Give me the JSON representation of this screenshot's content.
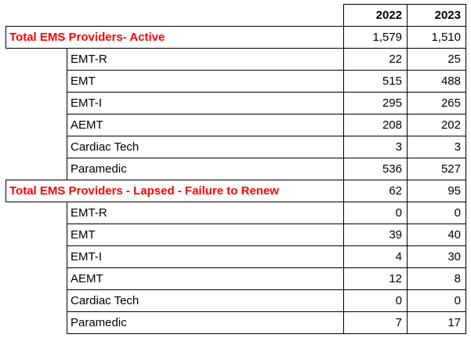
{
  "table": {
    "columns": {
      "year1": "2022",
      "year2": "2023"
    },
    "colors": {
      "accent_red": "#FF0000",
      "border": "#000000",
      "text": "#000000",
      "background": "#FFFFFF"
    },
    "sections": [
      {
        "title": "Total EMS Providers- Active",
        "total_2022": "1,579",
        "total_2023": "1,510",
        "rows": [
          {
            "label": "EMT-R",
            "v2022": "22",
            "v2023": "25"
          },
          {
            "label": "EMT",
            "v2022": "515",
            "v2023": "488"
          },
          {
            "label": "EMT-I",
            "v2022": "295",
            "v2023": "265"
          },
          {
            "label": "AEMT",
            "v2022": "208",
            "v2023": "202"
          },
          {
            "label": "Cardiac Tech",
            "v2022": "3",
            "v2023": "3"
          },
          {
            "label": "Paramedic",
            "v2022": "536",
            "v2023": "527"
          }
        ]
      },
      {
        "title": "Total EMS Providers - Lapsed - Failure to Renew",
        "total_2022": "62",
        "total_2023": "95",
        "rows": [
          {
            "label": "EMT-R",
            "v2022": "0",
            "v2023": "0"
          },
          {
            "label": "EMT",
            "v2022": "39",
            "v2023": "40"
          },
          {
            "label": "EMT-I",
            "v2022": "4",
            "v2023": "30"
          },
          {
            "label": "AEMT",
            "v2022": "12",
            "v2023": "8"
          },
          {
            "label": "Cardiac Tech",
            "v2022": "0",
            "v2023": "0"
          },
          {
            "label": "Paramedic",
            "v2022": "7",
            "v2023": "17"
          }
        ]
      }
    ]
  }
}
